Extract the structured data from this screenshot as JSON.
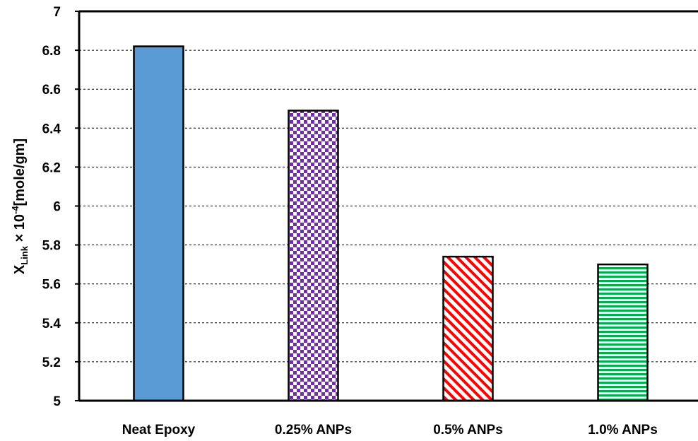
{
  "chart_data": {
    "type": "bar",
    "categories": [
      "Neat Epoxy",
      "0.25% ANPs",
      "0.5% ANPs",
      "1.0% ANPs"
    ],
    "values": [
      6.82,
      6.49,
      5.74,
      5.7
    ],
    "ylim": [
      5,
      7
    ],
    "yticks": [
      "5",
      "5.2",
      "5.4",
      "5.6",
      "5.8",
      "6",
      "6.2",
      "6.4",
      "6.6",
      "6.8",
      "7"
    ],
    "ylabel": {
      "main": "X",
      "sub": "Link",
      "mid": " × 10",
      "sup": "-4",
      "unit": "[mole/gm]"
    },
    "grid": true,
    "bar_styles": [
      {
        "pattern": "solid",
        "color": "#5b9bd5"
      },
      {
        "pattern": "checker",
        "color": "#7030a0"
      },
      {
        "pattern": "diagonal",
        "color": "#ff0000"
      },
      {
        "pattern": "horizontal",
        "color": "#00b050"
      }
    ]
  }
}
